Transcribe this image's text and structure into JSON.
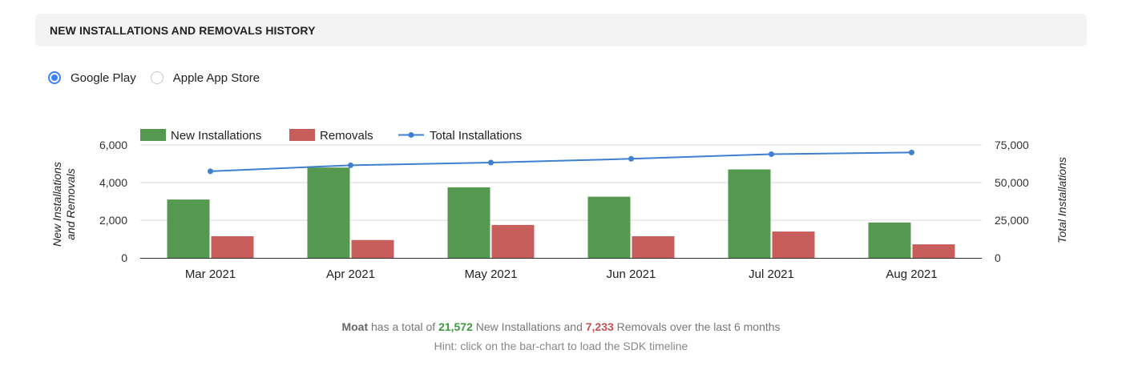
{
  "header": {
    "title": "NEW INSTALLATIONS AND REMOVALS HISTORY"
  },
  "store_options": [
    {
      "label": "Google Play",
      "checked": true
    },
    {
      "label": "Apple App Store",
      "checked": false
    }
  ],
  "colors": {
    "new_installations": "#54994f",
    "removals": "#c75e5b",
    "total_installations": "#3e7fd1"
  },
  "chart_data": {
    "type": "bar",
    "categories": [
      "Mar 2021",
      "Apr 2021",
      "May 2021",
      "Jun 2021",
      "Jul 2021",
      "Aug 2021"
    ],
    "series": [
      {
        "name": "New Installations",
        "type": "bar",
        "axis": "left",
        "values": [
          3100,
          4800,
          3750,
          3250,
          4700,
          1880
        ]
      },
      {
        "name": "Removals",
        "type": "bar",
        "axis": "left",
        "values": [
          1150,
          950,
          1750,
          1150,
          1400,
          720
        ]
      },
      {
        "name": "Total Installations",
        "type": "line",
        "axis": "right",
        "values": [
          57500,
          61500,
          63300,
          65800,
          68900,
          70000
        ]
      }
    ],
    "ylabel": "New Installations and Removals",
    "y2label": "Total Installations",
    "ylim": [
      0,
      6000
    ],
    "y2lim": [
      0,
      75000
    ],
    "yticks": [
      "0",
      "2,000",
      "4,000",
      "6,000"
    ],
    "y2ticks": [
      "0",
      "25,000",
      "50,000",
      "75,000"
    ],
    "grid": true,
    "legend": "top-left"
  },
  "summary": {
    "app_name": "Moat",
    "text1": " has a total of ",
    "new_total": "21,572",
    "text2": " New Installations and ",
    "removed_total": "7,233",
    "text3": " Removals over the last 6 months"
  },
  "hint": "Hint: click on the bar-chart to load the SDK timeline"
}
